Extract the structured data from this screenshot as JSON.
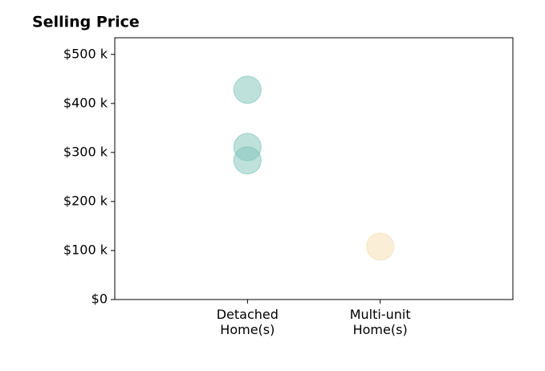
{
  "chart_data": {
    "type": "scatter",
    "title": "Selling Price",
    "groups": [
      {
        "category": "Detached\nHome(s)",
        "color": "#7fc4ba",
        "values": [
          428000,
          311000,
          284000
        ]
      },
      {
        "category": "Multi-unit\nHome(s)",
        "color": "#f5deb0",
        "values": [
          108000
        ]
      }
    ],
    "ylim": [
      0,
      534000
    ],
    "yticks": [
      {
        "value": 0,
        "label": "$0"
      },
      {
        "value": 100000,
        "label": "$100 k"
      },
      {
        "value": 200000,
        "label": "$200 k"
      },
      {
        "value": 300000,
        "label": "$300 k"
      },
      {
        "value": 400000,
        "label": "$400 k"
      },
      {
        "value": 500000,
        "label": "$500 k"
      }
    ]
  }
}
